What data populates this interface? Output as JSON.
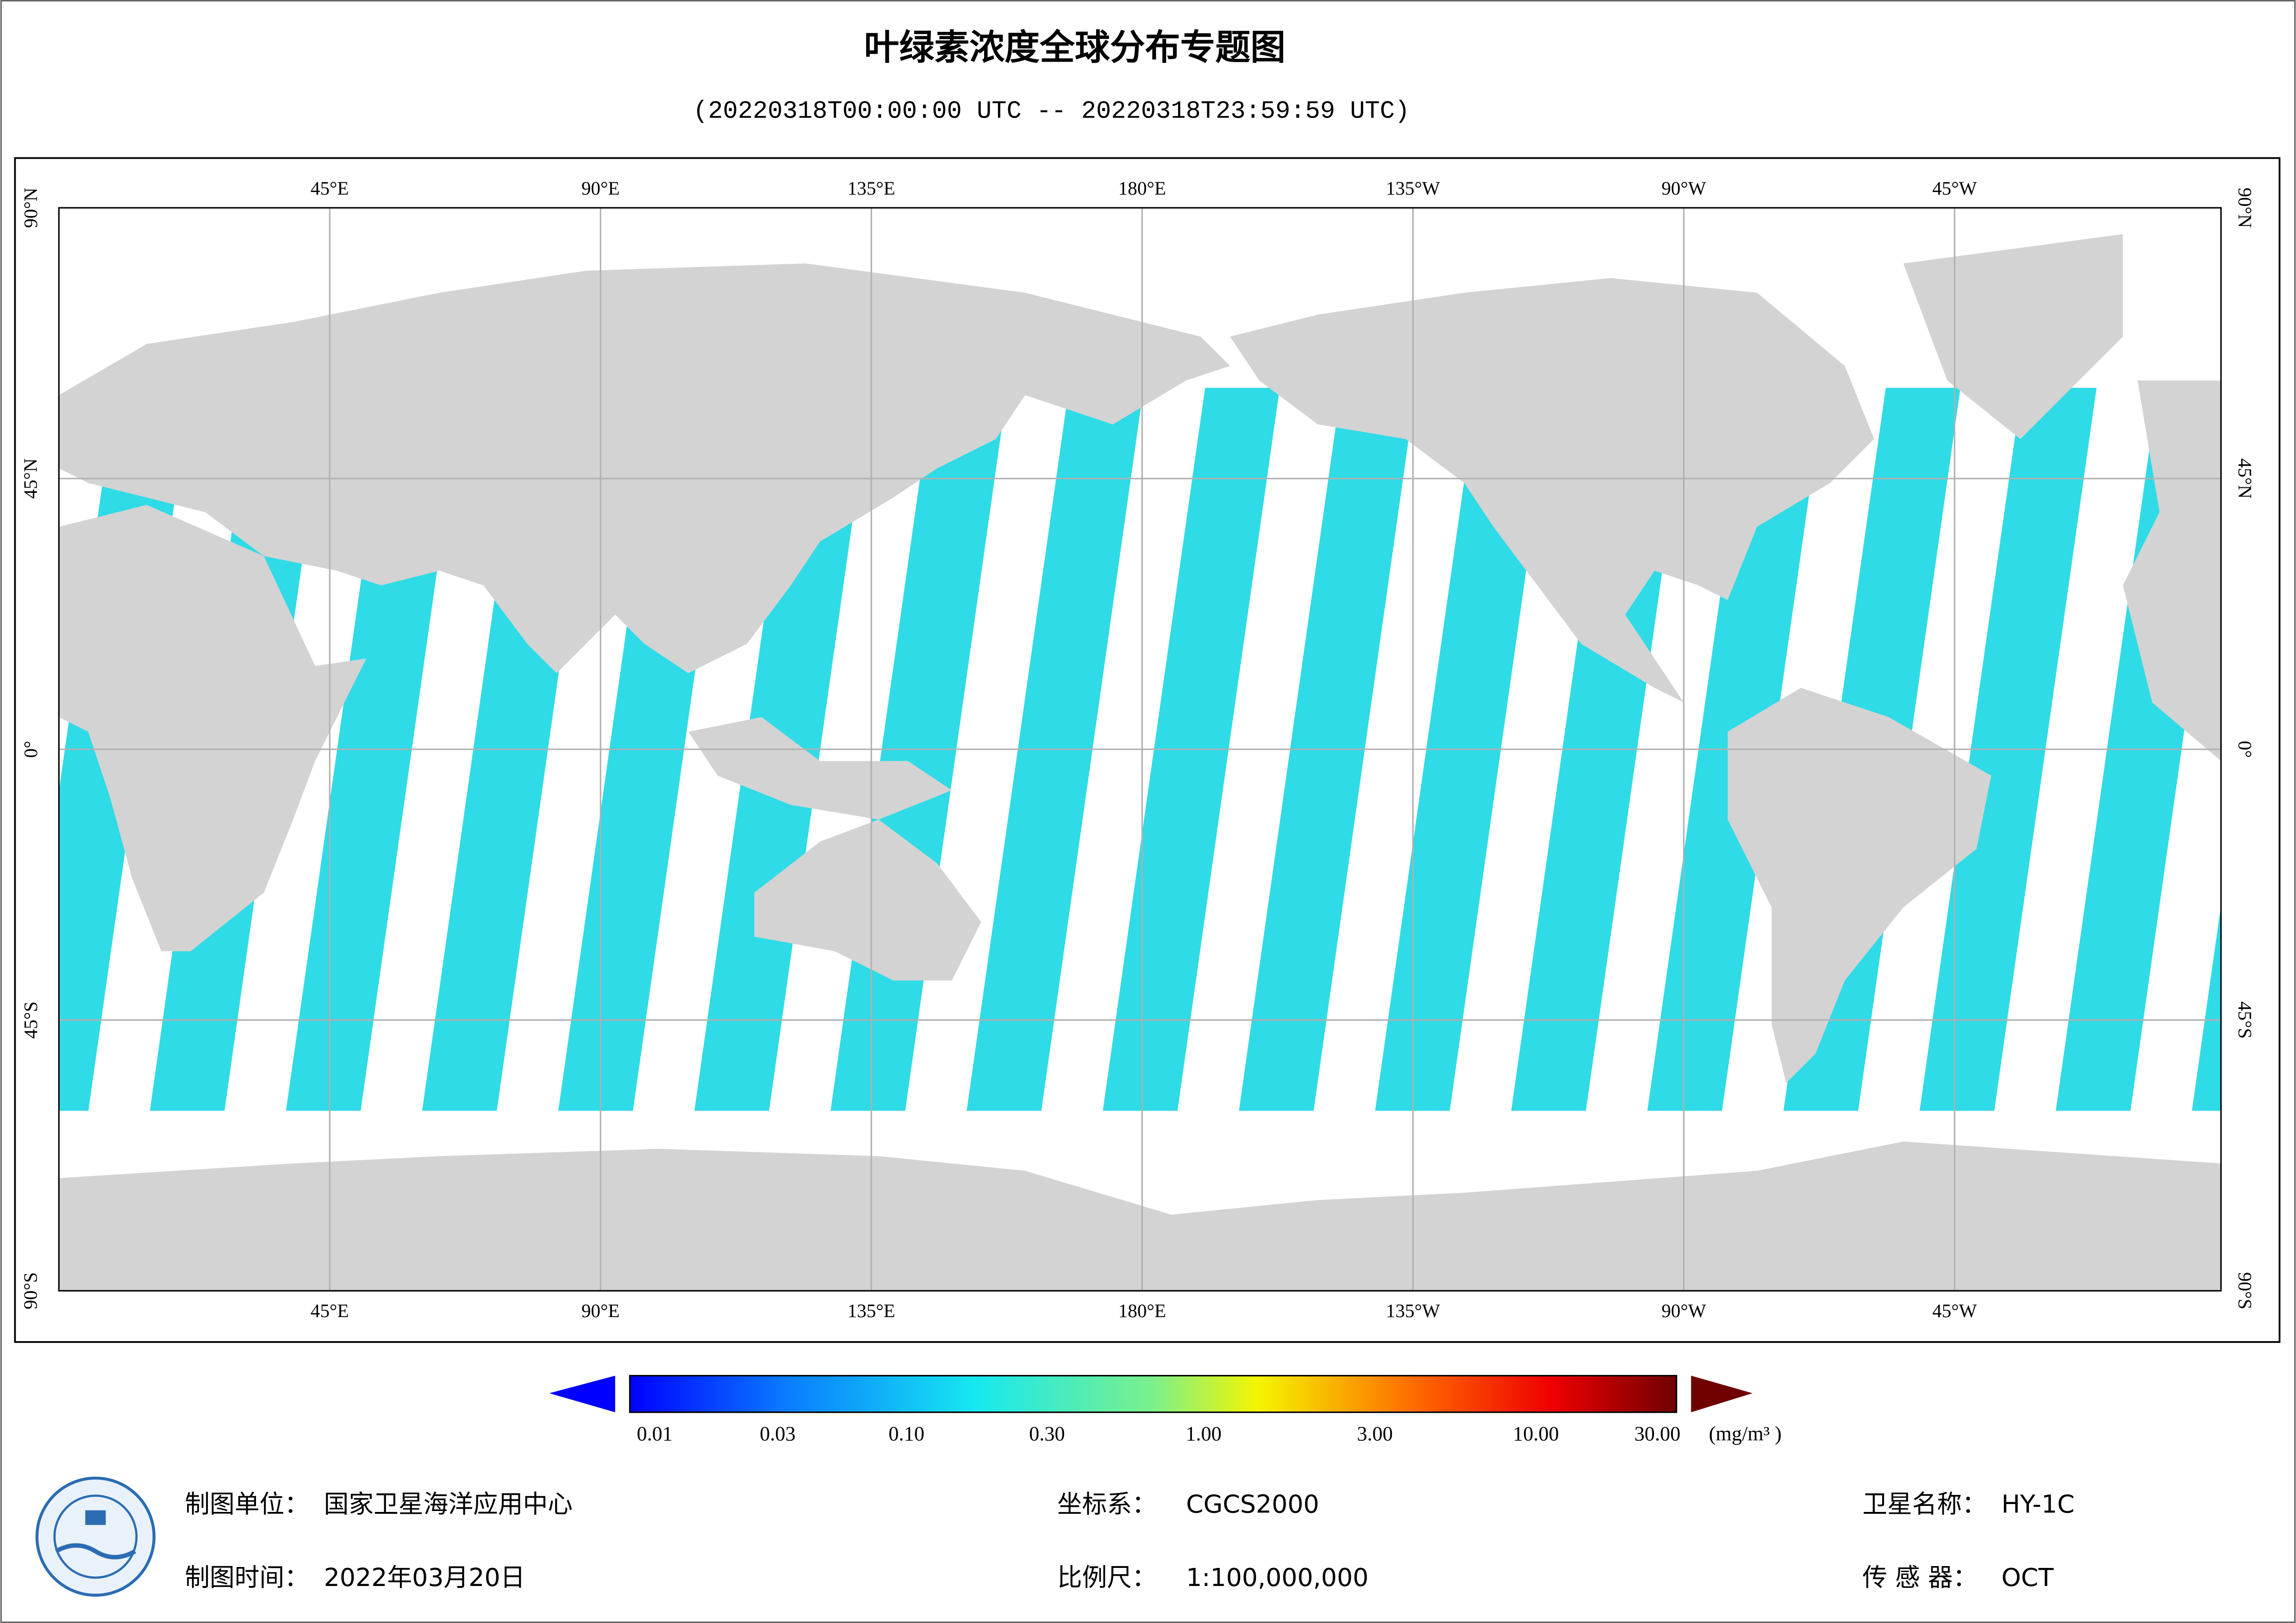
{
  "header": {
    "title": "叶绿素浓度全球分布专题图",
    "subtitle": "(20220318T00:00:00 UTC -- 20220318T23:59:59 UTC)"
  },
  "map": {
    "longitude_labels": [
      "45°E",
      "90°E",
      "135°E",
      "180°E",
      "135°W",
      "90°W",
      "45°W"
    ],
    "latitude_labels": [
      "90°N",
      "45°N",
      "0°",
      "45°S",
      "90°S"
    ]
  },
  "colorbar": {
    "labels": [
      "0.01",
      "0.03",
      "0.10",
      "0.30",
      "1.00",
      "3.00",
      "10.00",
      "30.00"
    ],
    "unit": "(mg/m³ )"
  },
  "footer": {
    "producer": {
      "label": "制图单位：",
      "value": "国家卫星海洋应用中心"
    },
    "date": {
      "label": "制图时间：",
      "value": "2022年03月20日"
    },
    "crs": {
      "label": "坐标系：",
      "value": "CGCS2000"
    },
    "scale": {
      "label": "比例尺：",
      "value": "1:100,000,000"
    },
    "satellite": {
      "label": "卫星名称：",
      "value": "HY-1C"
    },
    "sensor": {
      "label": "传 感 器：",
      "value": "OCT"
    }
  }
}
